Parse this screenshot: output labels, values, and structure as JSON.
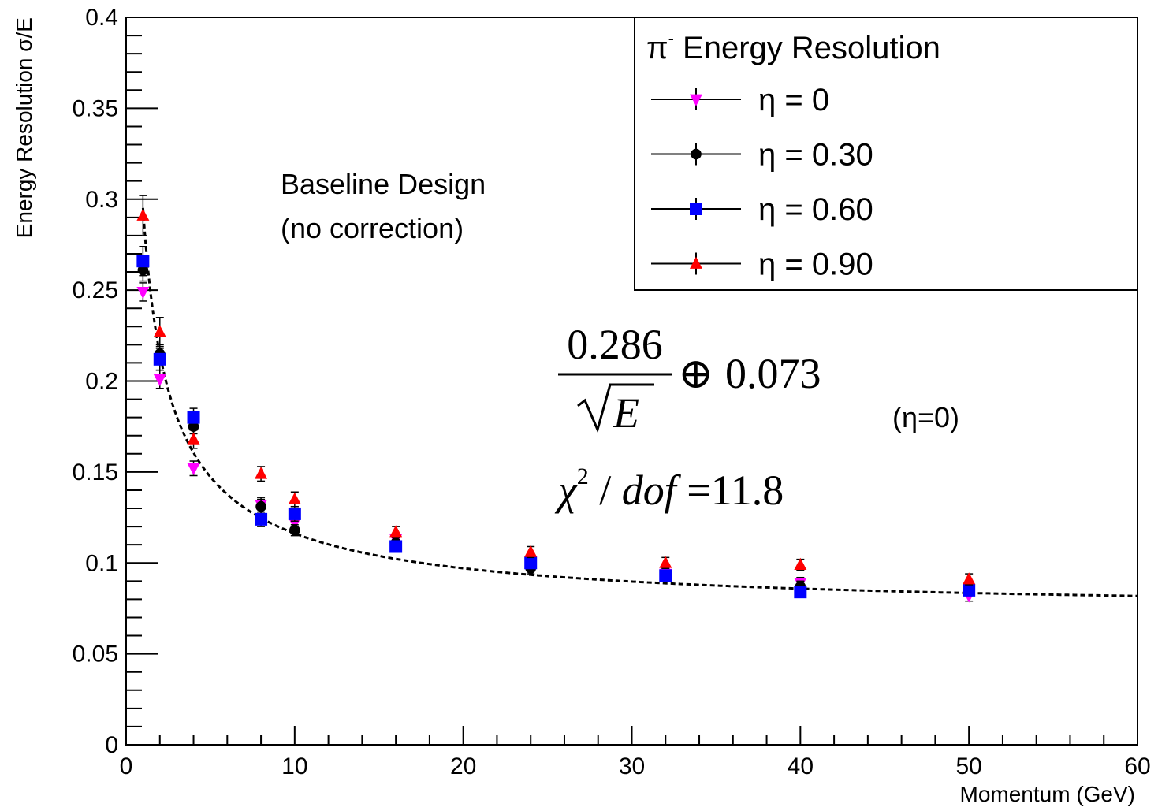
{
  "chart_data": {
    "type": "scatter",
    "xlabel": "Momentum (GeV)",
    "ylabel": "Energy Resolution σ/E",
    "xlim": [
      0,
      60
    ],
    "ylim": [
      0,
      0.4
    ],
    "x_ticks": [
      "0",
      "10",
      "20",
      "30",
      "40",
      "50",
      "60"
    ],
    "y_ticks": [
      "0",
      "0.05",
      "0.1",
      "0.15",
      "0.2",
      "0.25",
      "0.3",
      "0.35",
      "0.4"
    ],
    "grid": false,
    "legend": {
      "title_symbol": "π",
      "title_sup": "-",
      "title_text": " Energy Resolution",
      "placement": "top-right"
    },
    "x": [
      1,
      2,
      4,
      8,
      10,
      16,
      24,
      32,
      40,
      50
    ],
    "series": [
      {
        "name": "η = 0",
        "color": "#ff00ff",
        "marker": "triangle-down",
        "values": [
          0.249,
          0.201,
          0.152,
          0.132,
          0.122,
          0.113,
          0.101,
          0.094,
          0.089,
          0.082
        ],
        "errors": [
          0.005,
          0.005,
          0.004,
          0.004,
          0.004,
          0.003,
          0.003,
          0.003,
          0.003,
          0.003
        ]
      },
      {
        "name": "η = 0.30",
        "color": "#000000",
        "marker": "circle",
        "values": [
          0.261,
          0.215,
          0.175,
          0.131,
          0.118,
          0.111,
          0.097,
          0.093,
          0.087,
          0.085
        ],
        "errors": [
          0.006,
          0.005,
          0.004,
          0.004,
          0.003,
          0.003,
          0.003,
          0.003,
          0.003,
          0.003
        ]
      },
      {
        "name": "η = 0.60",
        "color": "#0000ff",
        "marker": "square",
        "values": [
          0.266,
          0.212,
          0.18,
          0.124,
          0.127,
          0.109,
          0.1,
          0.093,
          0.084,
          0.085
        ],
        "errors": [
          0.008,
          0.006,
          0.005,
          0.004,
          0.004,
          0.003,
          0.003,
          0.003,
          0.003,
          0.003
        ]
      },
      {
        "name": "η = 0.90",
        "color": "#ff0000",
        "marker": "triangle-up",
        "values": [
          0.291,
          0.227,
          0.168,
          0.149,
          0.135,
          0.117,
          0.106,
          0.1,
          0.099,
          0.091
        ],
        "errors": [
          0.011,
          0.008,
          0.005,
          0.004,
          0.004,
          0.003,
          0.003,
          0.003,
          0.003,
          0.003
        ]
      }
    ],
    "fit": {
      "style": "dashed",
      "color": "#000000",
      "stochastic": 0.286,
      "constant": 0.073,
      "x_range": [
        1,
        60
      ]
    },
    "annotations": {
      "design_line1": "Baseline Design",
      "design_line2": "(no correction)",
      "formula_numerator": "0.286",
      "formula_sqrt_arg": "E",
      "formula_oplus": "⊕",
      "formula_constant": "0.073",
      "eta_note": "(η=0)",
      "chi_symbol": "χ",
      "chi_exp": "2",
      "chi_rest": " / ",
      "chi_dof": "dof",
      "chi_value": " =11.8"
    }
  }
}
